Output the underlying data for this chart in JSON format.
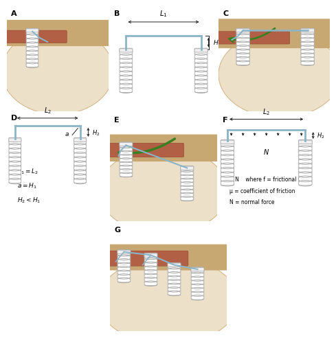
{
  "background_color": "#ffffff",
  "suture_color": "#8ab4c8",
  "suture_lw": 2.0,
  "anchor_body_color": "#e8e8e8",
  "anchor_edge_color": "#aaaaaa",
  "anchor_thread_color": "#cccccc",
  "dim_arrow_color": "#222222",
  "panel_label_fontsize": 8,
  "equations_D": [
    "$L_1 = L_2$",
    "$a = H_1$",
    "$H_2 < H_1$"
  ],
  "equations_F": [
    "f = μ N    where f = frictional force",
    "μ = coefficient of friction",
    "N = normal force"
  ]
}
